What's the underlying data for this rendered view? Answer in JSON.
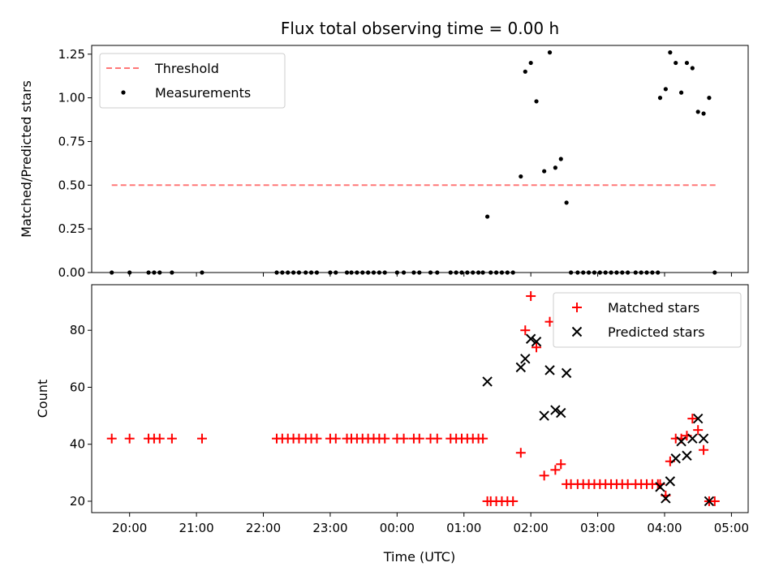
{
  "title": "Flux total observing time = 0.00 h",
  "colors": {
    "threshold": "#ff7777",
    "matched": "#ff0000",
    "predicted": "#000000",
    "measure": "#000000"
  },
  "chart_data": [
    {
      "type": "scatter",
      "panel": "top",
      "xlabel": "",
      "ylabel": "Matched/Predicted stars",
      "xlim": [
        "19:26",
        "05:15"
      ],
      "ylim": [
        0,
        1.3
      ],
      "yticks": [
        "0.00",
        "0.25",
        "0.50",
        "0.75",
        "1.00",
        "1.25"
      ],
      "grid": false,
      "legend_position": "top-left",
      "legend": [
        "Threshold",
        "Measurements"
      ],
      "threshold": {
        "name": "Threshold",
        "y": 0.5,
        "x_start": "19:44",
        "x_end": "04:47"
      },
      "series": [
        {
          "name": "Measurements",
          "points": [
            [
              "19:44",
              0
            ],
            [
              "20:00",
              0
            ],
            [
              "20:17",
              0
            ],
            [
              "20:22",
              0
            ],
            [
              "20:27",
              0
            ],
            [
              "20:38",
              0
            ],
            [
              "21:05",
              0
            ],
            [
              "22:12",
              0
            ],
            [
              "22:17",
              0
            ],
            [
              "22:22",
              0
            ],
            [
              "22:27",
              0
            ],
            [
              "22:32",
              0
            ],
            [
              "22:38",
              0
            ],
            [
              "22:43",
              0
            ],
            [
              "22:48",
              0
            ],
            [
              "23:00",
              0
            ],
            [
              "23:05",
              0
            ],
            [
              "23:15",
              0
            ],
            [
              "23:19",
              0
            ],
            [
              "23:24",
              0
            ],
            [
              "23:29",
              0
            ],
            [
              "23:34",
              0
            ],
            [
              "23:39",
              0
            ],
            [
              "23:44",
              0
            ],
            [
              "23:49",
              0
            ],
            [
              "24:00",
              0
            ],
            [
              "24:06",
              0
            ],
            [
              "24:15",
              0
            ],
            [
              "24:20",
              0
            ],
            [
              "24:30",
              0
            ],
            [
              "24:36",
              0
            ],
            [
              "24:48",
              0
            ],
            [
              "24:53",
              0
            ],
            [
              "24:58",
              0
            ],
            [
              "25:03",
              0
            ],
            [
              "25:08",
              0
            ],
            [
              "25:13",
              0
            ],
            [
              "25:17",
              0
            ],
            [
              "25:21",
              0.32
            ],
            [
              "25:24",
              0
            ],
            [
              "25:29",
              0
            ],
            [
              "25:34",
              0
            ],
            [
              "25:39",
              0
            ],
            [
              "25:44",
              0
            ],
            [
              "25:51",
              0.55
            ],
            [
              "25:55",
              1.15
            ],
            [
              "26:00",
              1.2
            ],
            [
              "26:05",
              0.98
            ],
            [
              "26:12",
              0.58
            ],
            [
              "26:17",
              1.26
            ],
            [
              "26:22",
              0.6
            ],
            [
              "26:27",
              0.65
            ],
            [
              "26:32",
              0.4
            ],
            [
              "26:36",
              0
            ],
            [
              "26:42",
              0
            ],
            [
              "26:47",
              0
            ],
            [
              "26:52",
              0
            ],
            [
              "26:57",
              0
            ],
            [
              "27:02",
              0
            ],
            [
              "27:07",
              0
            ],
            [
              "27:12",
              0
            ],
            [
              "27:17",
              0
            ],
            [
              "27:22",
              0
            ],
            [
              "27:27",
              0
            ],
            [
              "27:34",
              0
            ],
            [
              "27:39",
              0
            ],
            [
              "27:44",
              0
            ],
            [
              "27:49",
              0
            ],
            [
              "27:54",
              0
            ],
            [
              "27:56",
              1.0
            ],
            [
              "28:01",
              1.05
            ],
            [
              "28:05",
              1.26
            ],
            [
              "28:10",
              1.2
            ],
            [
              "28:15",
              1.03
            ],
            [
              "28:20",
              1.2
            ],
            [
              "28:25",
              1.17
            ],
            [
              "28:30",
              0.92
            ],
            [
              "28:35",
              0.91
            ],
            [
              "28:40",
              1.0
            ],
            [
              "28:45",
              0
            ]
          ]
        }
      ]
    },
    {
      "type": "scatter",
      "panel": "bottom",
      "xlabel": "Time (UTC)",
      "ylabel": "Count",
      "xlim": [
        "19:26",
        "05:15"
      ],
      "ylim": [
        16,
        96
      ],
      "yticks": [
        "20",
        "40",
        "60",
        "80"
      ],
      "xticks": [
        "20:00",
        "21:00",
        "22:00",
        "23:00",
        "00:00",
        "01:00",
        "02:00",
        "03:00",
        "04:00",
        "05:00"
      ],
      "grid": false,
      "legend_position": "top-right",
      "legend": [
        "Matched stars",
        "Predicted stars"
      ],
      "series": [
        {
          "name": "Matched stars",
          "marker": "+",
          "points": [
            [
              "19:44",
              42
            ],
            [
              "20:00",
              42
            ],
            [
              "20:17",
              42
            ],
            [
              "20:22",
              42
            ],
            [
              "20:27",
              42
            ],
            [
              "20:38",
              42
            ],
            [
              "21:05",
              42
            ],
            [
              "22:12",
              42
            ],
            [
              "22:17",
              42
            ],
            [
              "22:22",
              42
            ],
            [
              "22:27",
              42
            ],
            [
              "22:32",
              42
            ],
            [
              "22:38",
              42
            ],
            [
              "22:43",
              42
            ],
            [
              "22:48",
              42
            ],
            [
              "23:00",
              42
            ],
            [
              "23:05",
              42
            ],
            [
              "23:15",
              42
            ],
            [
              "23:19",
              42
            ],
            [
              "23:24",
              42
            ],
            [
              "23:29",
              42
            ],
            [
              "23:34",
              42
            ],
            [
              "23:39",
              42
            ],
            [
              "23:44",
              42
            ],
            [
              "23:49",
              42
            ],
            [
              "24:00",
              42
            ],
            [
              "24:06",
              42
            ],
            [
              "24:15",
              42
            ],
            [
              "24:20",
              42
            ],
            [
              "24:30",
              42
            ],
            [
              "24:36",
              42
            ],
            [
              "24:48",
              42
            ],
            [
              "24:53",
              42
            ],
            [
              "24:58",
              42
            ],
            [
              "25:03",
              42
            ],
            [
              "25:08",
              42
            ],
            [
              "25:13",
              42
            ],
            [
              "25:17",
              42
            ],
            [
              "25:21",
              20
            ],
            [
              "25:24",
              20
            ],
            [
              "25:29",
              20
            ],
            [
              "25:34",
              20
            ],
            [
              "25:39",
              20
            ],
            [
              "25:44",
              20
            ],
            [
              "25:51",
              37
            ],
            [
              "25:55",
              80
            ],
            [
              "26:00",
              92
            ],
            [
              "26:05",
              74
            ],
            [
              "26:12",
              29
            ],
            [
              "26:17",
              83
            ],
            [
              "26:22",
              31
            ],
            [
              "26:27",
              33
            ],
            [
              "26:32",
              26
            ],
            [
              "26:36",
              26
            ],
            [
              "26:42",
              26
            ],
            [
              "26:47",
              26
            ],
            [
              "26:52",
              26
            ],
            [
              "26:57",
              26
            ],
            [
              "27:02",
              26
            ],
            [
              "27:07",
              26
            ],
            [
              "27:12",
              26
            ],
            [
              "27:17",
              26
            ],
            [
              "27:22",
              26
            ],
            [
              "27:27",
              26
            ],
            [
              "27:34",
              26
            ],
            [
              "27:39",
              26
            ],
            [
              "27:44",
              26
            ],
            [
              "27:49",
              26
            ],
            [
              "27:54",
              26
            ],
            [
              "27:56",
              26
            ],
            [
              "28:01",
              22
            ],
            [
              "28:05",
              34
            ],
            [
              "28:10",
              42
            ],
            [
              "28:15",
              42
            ],
            [
              "28:20",
              43
            ],
            [
              "28:25",
              49
            ],
            [
              "28:30",
              45
            ],
            [
              "28:35",
              38
            ],
            [
              "28:40",
              20
            ],
            [
              "28:45",
              20
            ]
          ]
        },
        {
          "name": "Predicted stars",
          "marker": "x",
          "points": [
            [
              "25:21",
              62
            ],
            [
              "25:51",
              67
            ],
            [
              "25:55",
              70
            ],
            [
              "26:00",
              77
            ],
            [
              "26:05",
              76
            ],
            [
              "26:12",
              50
            ],
            [
              "26:17",
              66
            ],
            [
              "26:22",
              52
            ],
            [
              "26:27",
              51
            ],
            [
              "26:32",
              65
            ],
            [
              "27:56",
              25
            ],
            [
              "28:01",
              21
            ],
            [
              "28:05",
              27
            ],
            [
              "28:10",
              35
            ],
            [
              "28:15",
              41
            ],
            [
              "28:20",
              36
            ],
            [
              "28:25",
              42
            ],
            [
              "28:30",
              49
            ],
            [
              "28:35",
              42
            ],
            [
              "28:40",
              20
            ]
          ]
        }
      ]
    }
  ]
}
